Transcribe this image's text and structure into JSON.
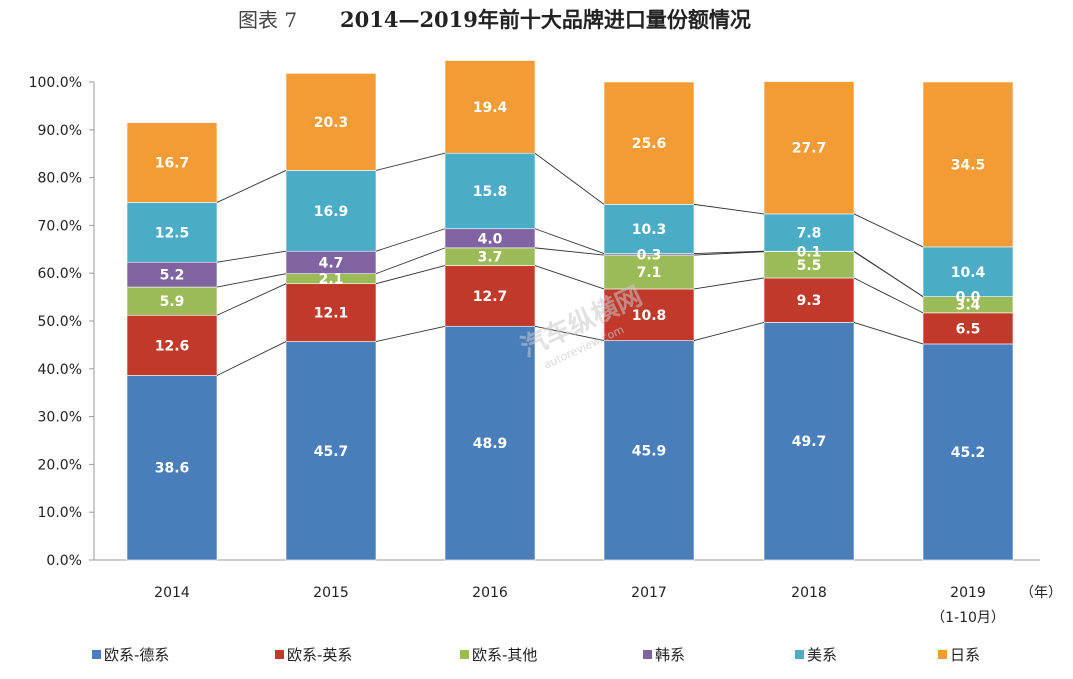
{
  "chart_data": {
    "type": "stacked-bar",
    "title_prefix": "图表 7",
    "title": "2014—2019年前十大品牌进口量份额情况",
    "x_unit": "（年）",
    "categories": [
      "2014",
      "2015",
      "2016",
      "2017",
      "2018",
      "2019"
    ],
    "category_sub": [
      "",
      "",
      "",
      "",
      "",
      "（1-10月）"
    ],
    "y_ticks": [
      "0.0%",
      "10.0%",
      "20.0%",
      "30.0%",
      "40.0%",
      "50.0%",
      "60.0%",
      "70.0%",
      "80.0%",
      "90.0%",
      "100.0%"
    ],
    "ylim": [
      0,
      100
    ],
    "legend_position": "bottom",
    "series": [
      {
        "name": "欧系-德系",
        "color": "#4a7ebb",
        "values": [
          38.6,
          45.7,
          48.9,
          45.9,
          49.7,
          45.2
        ],
        "labels": [
          "38.6",
          "45.7",
          "48.9",
          "45.9",
          "49.7",
          "45.2"
        ]
      },
      {
        "name": "欧系-英系",
        "color": "#c0392b",
        "values": [
          12.6,
          12.1,
          12.7,
          10.8,
          9.3,
          6.5
        ],
        "labels": [
          "12.6",
          "12.1",
          "12.7",
          "10.8",
          "9.3",
          "6.5"
        ]
      },
      {
        "name": "欧系-其他",
        "color": "#9bbb59",
        "values": [
          5.9,
          2.1,
          3.7,
          7.1,
          5.5,
          3.4
        ],
        "labels": [
          "5.9",
          "2.1",
          "3.7",
          "7.1",
          "5.5",
          "3.4"
        ]
      },
      {
        "name": "韩系",
        "color": "#8064a2",
        "values": [
          5.2,
          4.7,
          4.0,
          0.3,
          0.1,
          0.0
        ],
        "labels": [
          "5.2",
          "4.7",
          "4.0",
          "0.3",
          "0.1",
          "0.0"
        ]
      },
      {
        "name": "美系",
        "color": "#4bacc6",
        "values": [
          12.5,
          16.9,
          15.8,
          10.3,
          7.8,
          10.4
        ],
        "labels": [
          "12.5",
          "16.9",
          "15.8",
          "10.3",
          "7.8",
          "10.4"
        ]
      },
      {
        "name": "日系",
        "color": "#f39c35",
        "values": [
          16.7,
          20.3,
          19.4,
          25.6,
          27.7,
          34.5
        ],
        "labels": [
          "16.7",
          "20.3",
          "19.4",
          "25.6",
          "27.7",
          "34.5"
        ]
      }
    ]
  },
  "watermark": {
    "text": "汽车纵横网",
    "url": "autoreview.com"
  }
}
